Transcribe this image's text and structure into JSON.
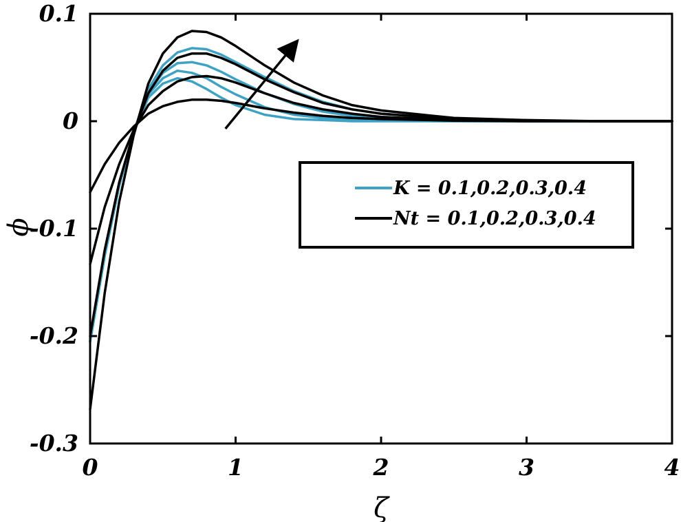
{
  "chart_data": {
    "type": "line",
    "xlabel": "ζ",
    "ylabel": "ϕ",
    "xlim": [
      0,
      4
    ],
    "ylim": [
      -0.3,
      0.1
    ],
    "xticks": [
      0,
      1,
      2,
      3,
      4
    ],
    "xtick_labels": [
      "0",
      "1",
      "2",
      "3",
      "4"
    ],
    "yticks": [
      -0.3,
      -0.2,
      -0.1,
      0,
      0.1
    ],
    "ytick_labels": [
      "-0.3",
      "-0.2",
      "-0.1",
      "0",
      "0.1"
    ],
    "grid": false,
    "legend_position": "right-middle",
    "legend": [
      {
        "label": "K = 0.1,0.2,0.3,0.4",
        "color": "#3ea2c4"
      },
      {
        "label": "Nt = 0.1,0.2,0.3,0.4",
        "color": "#000000"
      }
    ],
    "annotation": {
      "type": "arrow",
      "from": [
        0.93,
        -0.007
      ],
      "to": [
        1.42,
        0.074
      ],
      "meaning": "increasing parameter"
    },
    "series": [
      {
        "group": "K",
        "color": "#3ea2c4",
        "x": [
          0,
          0.1,
          0.2,
          0.3,
          0.4,
          0.5,
          0.6,
          0.7,
          0.8,
          0.9,
          1.0,
          1.2,
          1.4,
          1.6,
          1.8,
          2.0,
          2.5,
          3.0,
          3.5,
          4.0
        ],
        "y": [
          -0.205,
          -0.125,
          -0.06,
          -0.01,
          0.022,
          0.035,
          0.04,
          0.037,
          0.03,
          0.022,
          0.015,
          0.006,
          0.002,
          0.001,
          0,
          0,
          0,
          0,
          0,
          0
        ]
      },
      {
        "group": "K",
        "color": "#3ea2c4",
        "x": [
          0,
          0.1,
          0.2,
          0.3,
          0.4,
          0.5,
          0.6,
          0.7,
          0.8,
          0.9,
          1.0,
          1.2,
          1.4,
          1.6,
          1.8,
          2.0,
          2.5,
          3.0,
          3.5,
          4.0
        ],
        "y": [
          -0.205,
          -0.125,
          -0.06,
          -0.01,
          0.025,
          0.04,
          0.047,
          0.045,
          0.04,
          0.032,
          0.025,
          0.013,
          0.006,
          0.003,
          0.001,
          0.0005,
          0,
          0,
          0,
          0
        ]
      },
      {
        "group": "K",
        "color": "#3ea2c4",
        "x": [
          0,
          0.1,
          0.2,
          0.3,
          0.4,
          0.5,
          0.6,
          0.7,
          0.8,
          0.9,
          1.0,
          1.2,
          1.4,
          1.6,
          1.8,
          2.0,
          2.5,
          3.0,
          3.5,
          4.0
        ],
        "y": [
          -0.205,
          -0.125,
          -0.06,
          -0.01,
          0.027,
          0.045,
          0.054,
          0.055,
          0.052,
          0.046,
          0.039,
          0.026,
          0.016,
          0.009,
          0.005,
          0.003,
          0.0005,
          0,
          0,
          0
        ]
      },
      {
        "group": "K",
        "color": "#3ea2c4",
        "x": [
          0,
          0.1,
          0.2,
          0.3,
          0.4,
          0.5,
          0.6,
          0.7,
          0.8,
          0.9,
          1.0,
          1.2,
          1.4,
          1.6,
          1.8,
          2.0,
          2.5,
          3.0,
          3.5,
          4.0
        ],
        "y": [
          -0.205,
          -0.125,
          -0.06,
          -0.01,
          0.03,
          0.052,
          0.064,
          0.068,
          0.067,
          0.062,
          0.055,
          0.041,
          0.028,
          0.018,
          0.011,
          0.007,
          0.002,
          0.0005,
          0,
          0
        ]
      },
      {
        "group": "Nt",
        "color": "#000000",
        "x": [
          0,
          0.1,
          0.2,
          0.3,
          0.4,
          0.5,
          0.6,
          0.7,
          0.8,
          0.9,
          1.0,
          1.2,
          1.4,
          1.6,
          1.8,
          2.0,
          2.5,
          3.0,
          3.5,
          4.0
        ],
        "y": [
          -0.066,
          -0.04,
          -0.02,
          -0.005,
          0.007,
          0.014,
          0.018,
          0.02,
          0.02,
          0.019,
          0.017,
          0.012,
          0.008,
          0.005,
          0.003,
          0.002,
          0.0005,
          0,
          0,
          0
        ]
      },
      {
        "group": "Nt",
        "color": "#000000",
        "x": [
          0,
          0.1,
          0.2,
          0.3,
          0.4,
          0.5,
          0.6,
          0.7,
          0.8,
          0.9,
          1.0,
          1.2,
          1.4,
          1.6,
          1.8,
          2.0,
          2.5,
          3.0,
          3.5,
          4.0
        ],
        "y": [
          -0.133,
          -0.08,
          -0.04,
          -0.008,
          0.015,
          0.028,
          0.037,
          0.041,
          0.042,
          0.04,
          0.036,
          0.026,
          0.017,
          0.011,
          0.007,
          0.004,
          0.001,
          0,
          0,
          0
        ]
      },
      {
        "group": "Nt",
        "color": "#000000",
        "x": [
          0,
          0.1,
          0.2,
          0.3,
          0.4,
          0.5,
          0.6,
          0.7,
          0.8,
          0.9,
          1.0,
          1.2,
          1.4,
          1.6,
          1.8,
          2.0,
          2.5,
          3.0,
          3.5,
          4.0
        ],
        "y": [
          -0.2,
          -0.12,
          -0.057,
          -0.01,
          0.026,
          0.047,
          0.059,
          0.063,
          0.063,
          0.059,
          0.053,
          0.039,
          0.027,
          0.017,
          0.011,
          0.007,
          0.002,
          0.0005,
          0,
          0
        ]
      },
      {
        "group": "Nt",
        "color": "#000000",
        "x": [
          0,
          0.1,
          0.2,
          0.3,
          0.4,
          0.5,
          0.6,
          0.7,
          0.8,
          0.9,
          1.0,
          1.2,
          1.4,
          1.6,
          1.8,
          2.0,
          2.5,
          3.0,
          3.5,
          4.0
        ],
        "y": [
          -0.268,
          -0.16,
          -0.075,
          -0.013,
          0.035,
          0.063,
          0.078,
          0.084,
          0.083,
          0.078,
          0.07,
          0.052,
          0.036,
          0.024,
          0.015,
          0.01,
          0.003,
          0.001,
          0,
          0
        ]
      }
    ]
  }
}
